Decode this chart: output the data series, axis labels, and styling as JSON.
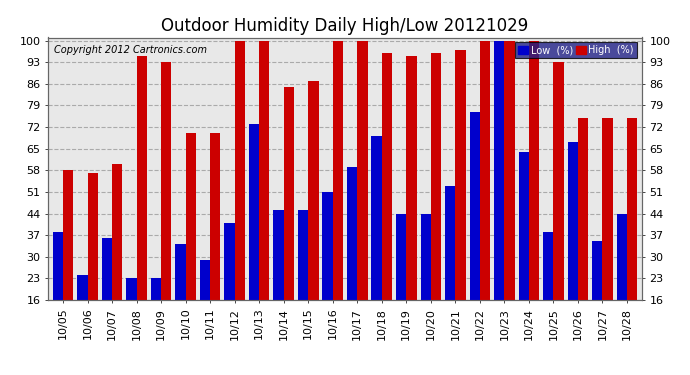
{
  "title": "Outdoor Humidity Daily High/Low 20121029",
  "copyright": "Copyright 2012 Cartronics.com",
  "legend_low_label": "Low  (%)",
  "legend_high_label": "High  (%)",
  "low_color": "#0000cc",
  "high_color": "#cc0000",
  "background_color": "#ffffff",
  "plot_bg_color": "#e8e8e8",
  "grid_color": "#aaaaaa",
  "categories": [
    "10/05",
    "10/06",
    "10/07",
    "10/08",
    "10/09",
    "10/10",
    "10/11",
    "10/12",
    "10/13",
    "10/14",
    "10/15",
    "10/16",
    "10/17",
    "10/18",
    "10/19",
    "10/20",
    "10/21",
    "10/22",
    "10/23",
    "10/24",
    "10/25",
    "10/26",
    "10/27",
    "10/28"
  ],
  "high_values": [
    58,
    57,
    60,
    95,
    93,
    70,
    70,
    100,
    100,
    85,
    87,
    100,
    100,
    96,
    95,
    96,
    97,
    100,
    100,
    100,
    93,
    75,
    75,
    75
  ],
  "low_values": [
    38,
    24,
    36,
    23,
    23,
    34,
    29,
    41,
    73,
    45,
    45,
    51,
    59,
    69,
    44,
    44,
    53,
    77,
    100,
    64,
    38,
    67,
    35,
    44
  ],
  "ylim": [
    16,
    101
  ],
  "yticks": [
    16,
    23,
    30,
    37,
    44,
    51,
    58,
    65,
    72,
    79,
    86,
    93,
    100
  ],
  "title_fontsize": 12,
  "copyright_fontsize": 7,
  "tick_fontsize": 8,
  "bar_width": 0.42
}
